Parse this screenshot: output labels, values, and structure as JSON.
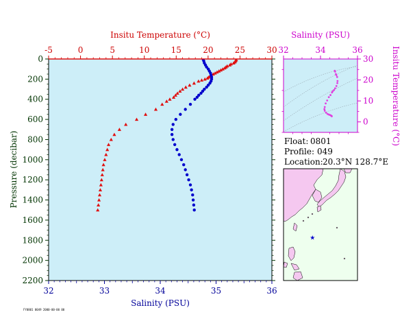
{
  "colors": {
    "temperature": "#e01010",
    "salinity_main": "#0000cc",
    "ts_curve": "#e040e0",
    "panel_bg": "#cdeef8",
    "map_sea": "#eeffee",
    "map_land": "#f5c8f0",
    "temp_axis_text": "#cc0000",
    "sal_axis_text": "#000099",
    "ts_axis_text": "#cc00cc",
    "pressure_label": "#003300"
  },
  "info": {
    "float_label": "Float:",
    "float_value": "0801",
    "profile_label": "Profile:",
    "profile_value": "049",
    "location_label": "Location:",
    "location_value": "20.3°N  128.7°E"
  },
  "map": {
    "lat": 20.3,
    "lon": 128.7,
    "marker": "star-icon"
  },
  "footnote": "FY0801 0049 2000-00-00 00",
  "chart_data": [
    {
      "type": "scatter",
      "title": "",
      "pressure_axis": {
        "label": "Pressure (decibar)",
        "range": [
          2200,
          0
        ],
        "ticks": [
          0,
          200,
          400,
          600,
          800,
          1000,
          1200,
          1400,
          1600,
          1800,
          2000,
          2200
        ]
      },
      "temperature_axis": {
        "label": "Insitu Temperature (°C)",
        "range": [
          -5,
          30
        ],
        "ticks": [
          -5,
          0,
          5,
          10,
          15,
          20,
          25,
          30
        ]
      },
      "salinity_axis": {
        "label": "Salinity (PSU)",
        "range": [
          32,
          36
        ],
        "ticks": [
          32,
          33,
          34,
          35,
          36
        ]
      },
      "series": [
        {
          "marker": "triangle",
          "pressure": [
            5,
            10,
            20,
            30,
            40,
            50,
            60,
            70,
            80,
            90,
            100,
            110,
            120,
            130,
            140,
            150,
            160,
            170,
            180,
            190,
            200,
            210,
            220,
            240,
            260,
            280,
            300,
            320,
            340,
            360,
            380,
            400,
            420,
            450,
            500,
            550,
            600,
            650,
            700,
            750,
            800,
            850,
            900,
            950,
            1000,
            1050,
            1100,
            1150,
            1200,
            1250,
            1300,
            1350,
            1400,
            1450,
            1500
          ],
          "temperature": [
            24.4,
            24.4,
            24.3,
            24.2,
            24.0,
            23.6,
            23.4,
            23.0,
            22.8,
            22.6,
            22.3,
            22.0,
            21.7,
            21.4,
            21.1,
            20.8,
            20.5,
            20.3,
            20.1,
            19.9,
            19.5,
            19.0,
            18.5,
            17.8,
            17.1,
            16.5,
            16.0,
            15.6,
            15.2,
            14.9,
            14.6,
            14.0,
            13.5,
            12.8,
            11.8,
            10.2,
            8.8,
            7.1,
            6.1,
            5.3,
            4.8,
            4.4,
            4.2,
            4.0,
            3.8,
            3.6,
            3.5,
            3.4,
            3.3,
            3.2,
            3.1,
            3.0,
            2.9,
            2.8,
            2.7
          ]
        },
        {
          "marker": "circle",
          "pressure": [
            5,
            20,
            40,
            60,
            80,
            100,
            120,
            140,
            160,
            180,
            200,
            220,
            240,
            260,
            280,
            300,
            320,
            340,
            360,
            380,
            400,
            450,
            500,
            550,
            600,
            650,
            700,
            750,
            800,
            850,
            900,
            950,
            1000,
            1050,
            1100,
            1150,
            1200,
            1250,
            1300,
            1350,
            1400,
            1450,
            1500
          ],
          "salinity": [
            34.77,
            34.78,
            34.79,
            34.81,
            34.83,
            34.86,
            34.88,
            34.9,
            34.91,
            34.92,
            34.92,
            34.91,
            34.89,
            34.86,
            34.83,
            34.79,
            34.76,
            34.73,
            34.69,
            34.66,
            34.62,
            34.54,
            34.45,
            34.36,
            34.28,
            34.23,
            34.21,
            34.21,
            34.23,
            34.26,
            34.3,
            34.34,
            34.38,
            34.42,
            34.45,
            34.48,
            34.51,
            34.54,
            34.56,
            34.58,
            34.59,
            34.6,
            34.61
          ]
        }
      ]
    },
    {
      "type": "scatter",
      "title": "",
      "xlabel": "Salinity (PSU)",
      "ylabel": "Insitu Temperature (°C)",
      "xlim": [
        32,
        36
      ],
      "ylim": [
        -5,
        30
      ],
      "xticks": [
        32,
        34,
        36
      ],
      "yticks": [
        0,
        10,
        20,
        30
      ],
      "series": [
        {
          "salinity": [
            34.77,
            34.79,
            34.83,
            34.86,
            34.9,
            34.92,
            34.91,
            34.86,
            34.79,
            34.73,
            34.66,
            34.62,
            34.54,
            34.45,
            34.36,
            34.28,
            34.23,
            34.21,
            34.23,
            34.3,
            34.38,
            34.45,
            34.51,
            34.56,
            34.59,
            34.61
          ],
          "temperature": [
            24.4,
            24.0,
            22.8,
            22.3,
            21.4,
            19.5,
            18.5,
            17.1,
            16.0,
            15.2,
            14.6,
            14.0,
            12.8,
            11.8,
            10.2,
            8.8,
            7.1,
            6.1,
            5.3,
            4.4,
            3.8,
            3.5,
            3.3,
            3.1,
            2.9,
            2.7
          ]
        }
      ]
    }
  ]
}
